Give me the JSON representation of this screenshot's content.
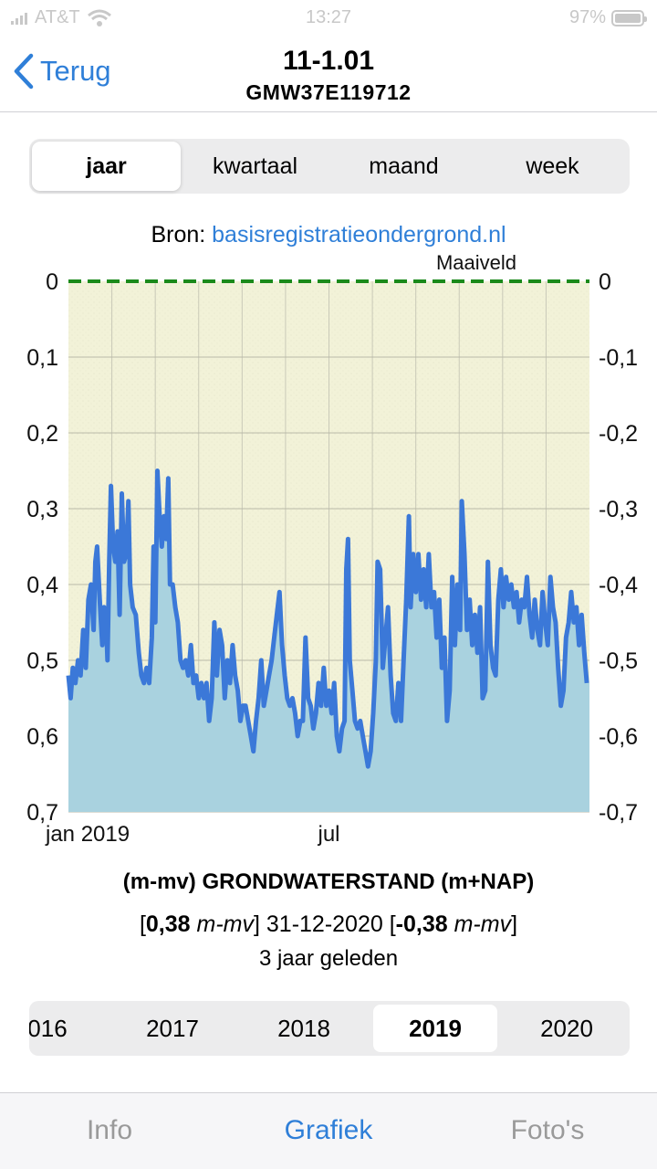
{
  "status_bar": {
    "carrier": "AT&T",
    "time": "13:27",
    "battery": "97%"
  },
  "nav": {
    "back_label": "Terug",
    "title": "11-1.01",
    "subtitle": "GMW37E119712"
  },
  "period_tabs": [
    {
      "label": "jaar",
      "active": true
    },
    {
      "label": "kwartaal",
      "active": false
    },
    {
      "label": "maand",
      "active": false
    },
    {
      "label": "week",
      "active": false
    }
  ],
  "source": {
    "prefix": "Bron: ",
    "link": "basisregistratieondergrond.nl"
  },
  "chart_data": {
    "type": "area",
    "annotation": "Maaiveld",
    "reference_line": {
      "label": "Maaiveld",
      "value": 0
    },
    "y_left_ticks": [
      "0",
      "0,1",
      "0,2",
      "0,3",
      "0,4",
      "0,5",
      "0,6",
      "0,7"
    ],
    "y_right_ticks": [
      "0",
      "-0,1",
      "-0,2",
      "-0,3",
      "-0,4",
      "-0,5",
      "-0,6",
      "-0,7"
    ],
    "ylim": [
      0,
      0.7
    ],
    "x_ticks": [
      {
        "label": "jan 2019",
        "month": 0
      },
      {
        "label": "jul",
        "month": 6
      }
    ],
    "xlim_months": [
      0,
      12
    ],
    "colors": {
      "line": "#3b78d8",
      "fill": "#a9d2df",
      "background": "#f2f2d8",
      "reference": "#1a8a1a"
    },
    "series": [
      {
        "values": [
          [
            0.0,
            0.52
          ],
          [
            0.05,
            0.55
          ],
          [
            0.1,
            0.51
          ],
          [
            0.16,
            0.53
          ],
          [
            0.22,
            0.5
          ],
          [
            0.28,
            0.52
          ],
          [
            0.34,
            0.46
          ],
          [
            0.4,
            0.51
          ],
          [
            0.46,
            0.42
          ],
          [
            0.52,
            0.4
          ],
          [
            0.58,
            0.46
          ],
          [
            0.62,
            0.37
          ],
          [
            0.66,
            0.35
          ],
          [
            0.72,
            0.42
          ],
          [
            0.78,
            0.48
          ],
          [
            0.82,
            0.43
          ],
          [
            0.87,
            0.45
          ],
          [
            0.9,
            0.5
          ],
          [
            0.94,
            0.37
          ],
          [
            0.98,
            0.27
          ],
          [
            1.03,
            0.35
          ],
          [
            1.08,
            0.37
          ],
          [
            1.13,
            0.33
          ],
          [
            1.18,
            0.44
          ],
          [
            1.23,
            0.28
          ],
          [
            1.28,
            0.37
          ],
          [
            1.33,
            0.36
          ],
          [
            1.38,
            0.29
          ],
          [
            1.42,
            0.4
          ],
          [
            1.48,
            0.43
          ],
          [
            1.55,
            0.44
          ],
          [
            1.62,
            0.49
          ],
          [
            1.68,
            0.52
          ],
          [
            1.74,
            0.53
          ],
          [
            1.8,
            0.51
          ],
          [
            1.86,
            0.53
          ],
          [
            1.92,
            0.47
          ],
          [
            1.96,
            0.35
          ],
          [
            2.0,
            0.45
          ],
          [
            2.05,
            0.25
          ],
          [
            2.1,
            0.31
          ],
          [
            2.15,
            0.35
          ],
          [
            2.2,
            0.31
          ],
          [
            2.25,
            0.34
          ],
          [
            2.3,
            0.26
          ],
          [
            2.34,
            0.4
          ],
          [
            2.4,
            0.4
          ],
          [
            2.46,
            0.43
          ],
          [
            2.52,
            0.45
          ],
          [
            2.58,
            0.5
          ],
          [
            2.64,
            0.51
          ],
          [
            2.7,
            0.5
          ],
          [
            2.76,
            0.52
          ],
          [
            2.82,
            0.48
          ],
          [
            2.88,
            0.53
          ],
          [
            2.94,
            0.52
          ],
          [
            3.0,
            0.55
          ],
          [
            3.06,
            0.53
          ],
          [
            3.12,
            0.55
          ],
          [
            3.18,
            0.53
          ],
          [
            3.24,
            0.58
          ],
          [
            3.3,
            0.55
          ],
          [
            3.36,
            0.45
          ],
          [
            3.42,
            0.52
          ],
          [
            3.48,
            0.46
          ],
          [
            3.54,
            0.48
          ],
          [
            3.6,
            0.55
          ],
          [
            3.66,
            0.5
          ],
          [
            3.72,
            0.53
          ],
          [
            3.78,
            0.48
          ],
          [
            3.84,
            0.52
          ],
          [
            3.9,
            0.54
          ],
          [
            3.96,
            0.58
          ],
          [
            4.02,
            0.56
          ],
          [
            4.08,
            0.56
          ],
          [
            4.14,
            0.58
          ],
          [
            4.2,
            0.6
          ],
          [
            4.26,
            0.62
          ],
          [
            4.32,
            0.58
          ],
          [
            4.38,
            0.55
          ],
          [
            4.44,
            0.5
          ],
          [
            4.5,
            0.56
          ],
          [
            4.56,
            0.54
          ],
          [
            4.62,
            0.52
          ],
          [
            4.68,
            0.5
          ],
          [
            4.74,
            0.47
          ],
          [
            4.8,
            0.44
          ],
          [
            4.86,
            0.41
          ],
          [
            4.92,
            0.48
          ],
          [
            4.98,
            0.52
          ],
          [
            5.04,
            0.55
          ],
          [
            5.1,
            0.56
          ],
          [
            5.16,
            0.55
          ],
          [
            5.22,
            0.57
          ],
          [
            5.28,
            0.6
          ],
          [
            5.34,
            0.58
          ],
          [
            5.4,
            0.58
          ],
          [
            5.46,
            0.47
          ],
          [
            5.52,
            0.55
          ],
          [
            5.58,
            0.56
          ],
          [
            5.64,
            0.59
          ],
          [
            5.7,
            0.57
          ],
          [
            5.76,
            0.53
          ],
          [
            5.82,
            0.56
          ],
          [
            5.88,
            0.51
          ],
          [
            5.94,
            0.56
          ],
          [
            6.0,
            0.54
          ],
          [
            6.06,
            0.57
          ],
          [
            6.12,
            0.53
          ],
          [
            6.18,
            0.6
          ],
          [
            6.24,
            0.62
          ],
          [
            6.3,
            0.59
          ],
          [
            6.36,
            0.58
          ],
          [
            6.4,
            0.38
          ],
          [
            6.44,
            0.34
          ],
          [
            6.48,
            0.5
          ],
          [
            6.54,
            0.54
          ],
          [
            6.6,
            0.58
          ],
          [
            6.66,
            0.59
          ],
          [
            6.72,
            0.58
          ],
          [
            6.78,
            0.6
          ],
          [
            6.84,
            0.62
          ],
          [
            6.9,
            0.64
          ],
          [
            6.96,
            0.62
          ],
          [
            7.02,
            0.57
          ],
          [
            7.08,
            0.5
          ],
          [
            7.12,
            0.37
          ],
          [
            7.18,
            0.38
          ],
          [
            7.24,
            0.51
          ],
          [
            7.3,
            0.47
          ],
          [
            7.36,
            0.43
          ],
          [
            7.42,
            0.52
          ],
          [
            7.48,
            0.57
          ],
          [
            7.54,
            0.58
          ],
          [
            7.6,
            0.53
          ],
          [
            7.66,
            0.58
          ],
          [
            7.72,
            0.5
          ],
          [
            7.78,
            0.42
          ],
          [
            7.84,
            0.31
          ],
          [
            7.88,
            0.43
          ],
          [
            7.94,
            0.36
          ],
          [
            8.0,
            0.41
          ],
          [
            8.06,
            0.36
          ],
          [
            8.12,
            0.42
          ],
          [
            8.18,
            0.38
          ],
          [
            8.24,
            0.43
          ],
          [
            8.3,
            0.36
          ],
          [
            8.36,
            0.43
          ],
          [
            8.42,
            0.41
          ],
          [
            8.48,
            0.47
          ],
          [
            8.54,
            0.42
          ],
          [
            8.6,
            0.51
          ],
          [
            8.66,
            0.47
          ],
          [
            8.72,
            0.58
          ],
          [
            8.78,
            0.54
          ],
          [
            8.84,
            0.39
          ],
          [
            8.9,
            0.48
          ],
          [
            8.96,
            0.4
          ],
          [
            9.02,
            0.46
          ],
          [
            9.06,
            0.29
          ],
          [
            9.12,
            0.36
          ],
          [
            9.18,
            0.46
          ],
          [
            9.24,
            0.42
          ],
          [
            9.3,
            0.48
          ],
          [
            9.36,
            0.44
          ],
          [
            9.42,
            0.49
          ],
          [
            9.48,
            0.43
          ],
          [
            9.54,
            0.55
          ],
          [
            9.6,
            0.54
          ],
          [
            9.66,
            0.37
          ],
          [
            9.72,
            0.48
          ],
          [
            9.78,
            0.51
          ],
          [
            9.84,
            0.52
          ],
          [
            9.9,
            0.42
          ],
          [
            9.96,
            0.38
          ],
          [
            10.02,
            0.43
          ],
          [
            10.08,
            0.39
          ],
          [
            10.14,
            0.42
          ],
          [
            10.2,
            0.4
          ],
          [
            10.26,
            0.43
          ],
          [
            10.32,
            0.41
          ],
          [
            10.38,
            0.45
          ],
          [
            10.44,
            0.42
          ],
          [
            10.5,
            0.43
          ],
          [
            10.56,
            0.39
          ],
          [
            10.62,
            0.44
          ],
          [
            10.68,
            0.47
          ],
          [
            10.74,
            0.42
          ],
          [
            10.8,
            0.46
          ],
          [
            10.86,
            0.48
          ],
          [
            10.92,
            0.41
          ],
          [
            10.98,
            0.45
          ],
          [
            11.04,
            0.48
          ],
          [
            11.1,
            0.39
          ],
          [
            11.16,
            0.43
          ],
          [
            11.22,
            0.45
          ],
          [
            11.28,
            0.51
          ],
          [
            11.34,
            0.56
          ],
          [
            11.4,
            0.54
          ],
          [
            11.46,
            0.47
          ],
          [
            11.52,
            0.45
          ],
          [
            11.58,
            0.41
          ],
          [
            11.64,
            0.45
          ],
          [
            11.7,
            0.43
          ],
          [
            11.76,
            0.48
          ],
          [
            11.82,
            0.44
          ],
          [
            11.88,
            0.49
          ],
          [
            11.94,
            0.53
          ]
        ]
      }
    ]
  },
  "chart_title": "(m-mv) GRONDWATERSTAND (m+NAP)",
  "reading": {
    "open": "[",
    "value": "0,38",
    "unit": "m-mv",
    "mid": "] 31-12-2020 [",
    "value2": "-0,38",
    "unit2": "m-mv",
    "close": "]"
  },
  "reading_ago": "3 jaar geleden",
  "years": [
    {
      "label": "016",
      "active": false
    },
    {
      "label": "2017",
      "active": false
    },
    {
      "label": "2018",
      "active": false
    },
    {
      "label": "2019",
      "active": true
    },
    {
      "label": "2020",
      "active": false
    }
  ],
  "tab_bar": [
    {
      "label": "Info",
      "active": false
    },
    {
      "label": "Grafiek",
      "active": true
    },
    {
      "label": "Foto's",
      "active": false
    }
  ]
}
